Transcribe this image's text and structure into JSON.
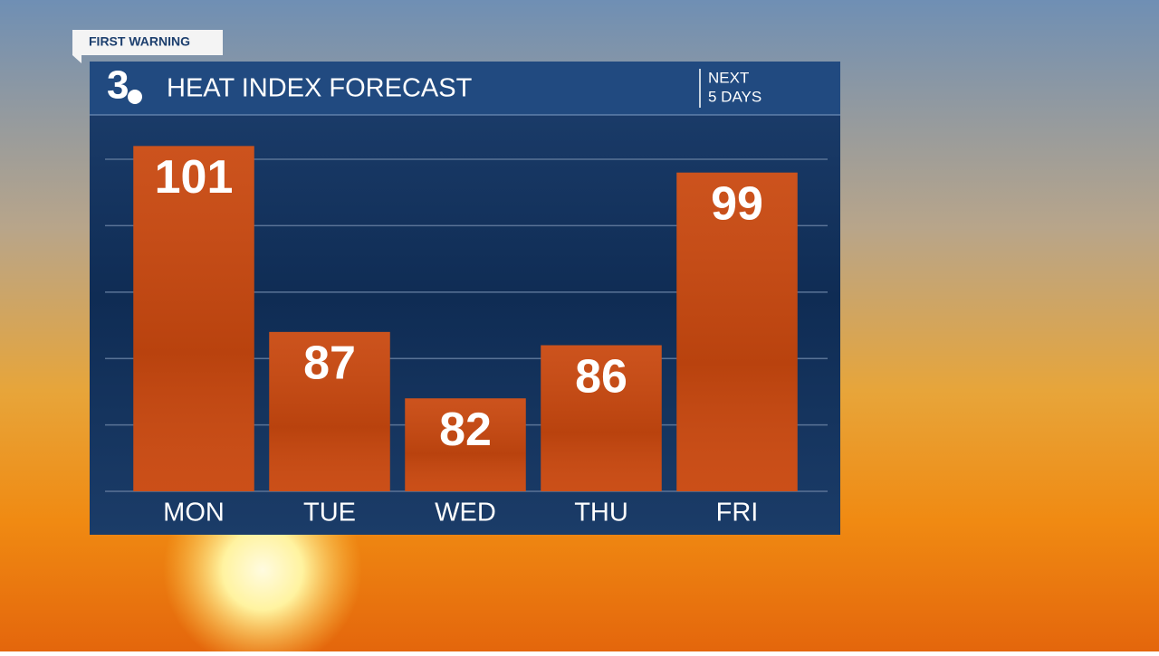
{
  "tag": "FIRST WARNING",
  "logo": "3",
  "chart_data": {
    "type": "bar",
    "title": "HEAT INDEX FORECAST",
    "subtitle": [
      "NEXT",
      "5 DAYS"
    ],
    "categories": [
      "MON",
      "TUE",
      "WED",
      "THU",
      "FRI"
    ],
    "values": [
      101,
      87,
      82,
      86,
      99
    ],
    "color": "#c9480f",
    "ylim": [
      75,
      103
    ],
    "yticks": [
      75,
      80,
      85,
      90,
      95,
      100
    ],
    "grid": true
  }
}
